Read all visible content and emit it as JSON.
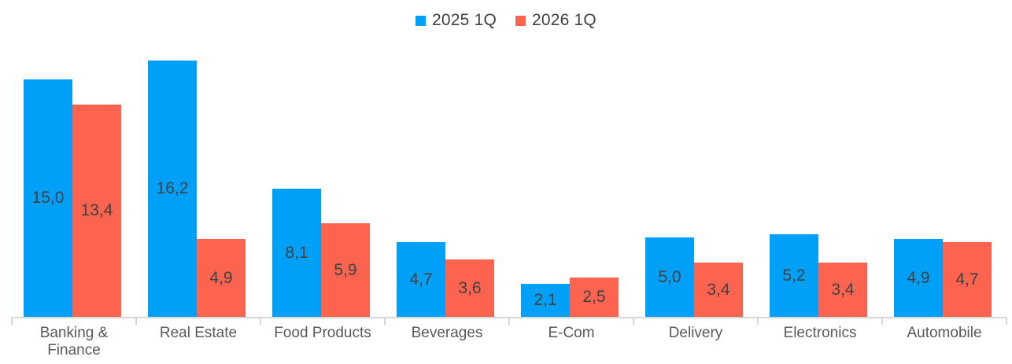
{
  "chart_data": {
    "type": "bar",
    "title": "",
    "xlabel": "",
    "ylabel": "",
    "categories": [
      "Banking & Finance",
      "Real Estate",
      "Food Products",
      "Beverages",
      "E-Com",
      "Delivery",
      "Electronics",
      "Automobile"
    ],
    "series": [
      {
        "name": "2025 1Q",
        "color": "#009FF8",
        "values": [
          15.0,
          16.2,
          8.1,
          4.7,
          2.1,
          5.0,
          5.2,
          4.9
        ]
      },
      {
        "name": "2026 1Q",
        "color": "#FC6450",
        "values": [
          13.4,
          4.9,
          5.9,
          3.6,
          2.5,
          3.4,
          3.4,
          4.7
        ]
      }
    ],
    "decimal_separator": ",",
    "value_labels_visible": true,
    "value_label_position": "inside-center",
    "ylim": [
      0,
      20
    ],
    "grid": false,
    "y_axis_visible": false,
    "legend_position": "top-center",
    "axis_color": "#d6d6d6",
    "value_label_color": "#414141",
    "category_label_color": "#58595b"
  }
}
